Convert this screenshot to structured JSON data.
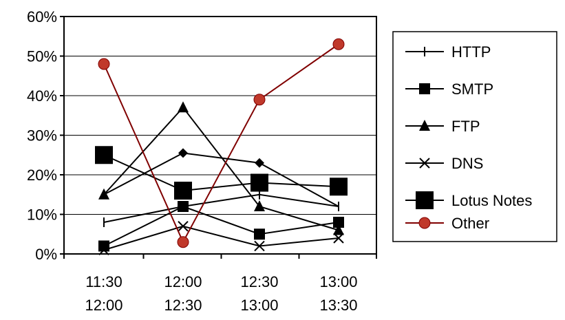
{
  "chart_data": {
    "type": "line",
    "categories": [
      [
        "11:30",
        "12:00"
      ],
      [
        "12:00",
        "12:30"
      ],
      [
        "12:30",
        "13:00"
      ],
      [
        "13:00",
        "13:30"
      ]
    ],
    "ylim": [
      0,
      60
    ],
    "yticks": [
      0,
      10,
      20,
      30,
      40,
      50,
      60
    ],
    "ytick_labels": [
      "0%",
      "10%",
      "20%",
      "30%",
      "40%",
      "50%",
      "60%"
    ],
    "grid": true,
    "legend_position": "right",
    "series": [
      {
        "name": "HTTP",
        "values": [
          8,
          12,
          15,
          12
        ],
        "marker": "bar",
        "color": "#000000"
      },
      {
        "name": "SMTP",
        "values": [
          2,
          12,
          5,
          8
        ],
        "marker": "square-small",
        "color": "#000000"
      },
      {
        "name": "FTP",
        "values": [
          15,
          37,
          12,
          6
        ],
        "marker": "triangle",
        "color": "#000000"
      },
      {
        "name": "DNS",
        "values": [
          1,
          7,
          2,
          4
        ],
        "marker": "x",
        "color": "#000000"
      },
      {
        "name": "Lotus Notes",
        "values": [
          25,
          16,
          18,
          17
        ],
        "marker": "square-large",
        "color": "#000000"
      },
      {
        "name": "Other",
        "values": [
          48,
          3,
          39,
          53
        ],
        "marker": "circle",
        "color": "#800000"
      }
    ],
    "extra_points": [
      {
        "series": "Other-diamond",
        "values": [
          null,
          25.5,
          23,
          null
        ],
        "marker": "diamond",
        "color": "#000000"
      }
    ]
  }
}
